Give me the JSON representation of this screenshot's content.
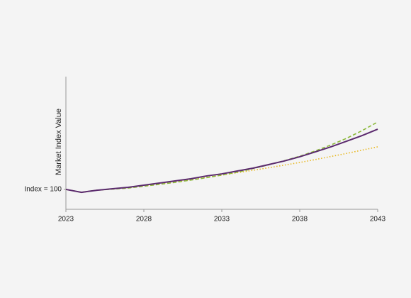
{
  "chart_data": {
    "type": "line",
    "y_label": "Market Index Value",
    "x": [
      2023,
      2024,
      2025,
      2026,
      2027,
      2028,
      2029,
      2030,
      2031,
      2032,
      2033,
      2034,
      2035,
      2036,
      2037,
      2038,
      2039,
      2040,
      2041,
      2042,
      2043
    ],
    "xlim": [
      2023,
      2043
    ],
    "xticks": [
      2023,
      2028,
      2033,
      2038,
      2043
    ],
    "ylim": [
      85,
      185
    ],
    "yticks": [
      {
        "value": 100,
        "label": "Index = 100"
      }
    ],
    "series": [
      {
        "color": "#e8b820",
        "dash": "dotted",
        "values": [
          100,
          97.8,
          99.4,
          100.3,
          101.2,
          102.6,
          104,
          105.6,
          107.2,
          109,
          110.8,
          112.6,
          114.4,
          116.3,
          118.3,
          120.3,
          122.5,
          124.8,
          127.1,
          129.6,
          132.1
        ]
      },
      {
        "color": "#8ab83a",
        "dash": "dashed",
        "values": [
          100,
          97.8,
          99.4,
          100.2,
          101,
          102.4,
          103.8,
          105.3,
          107,
          108.8,
          110.8,
          113,
          115.7,
          118.5,
          121.6,
          125,
          129,
          133.5,
          138.5,
          144.3,
          150.8
        ]
      },
      {
        "color": "#5b2a6e",
        "dash": "solid",
        "values": [
          100,
          97.8,
          99.4,
          100.5,
          101.6,
          103.2,
          104.8,
          106.4,
          108,
          110.1,
          111.7,
          113.9,
          116,
          118.7,
          121.4,
          124.6,
          128.3,
          132.1,
          136.3,
          140.6,
          145.4
        ]
      }
    ]
  }
}
